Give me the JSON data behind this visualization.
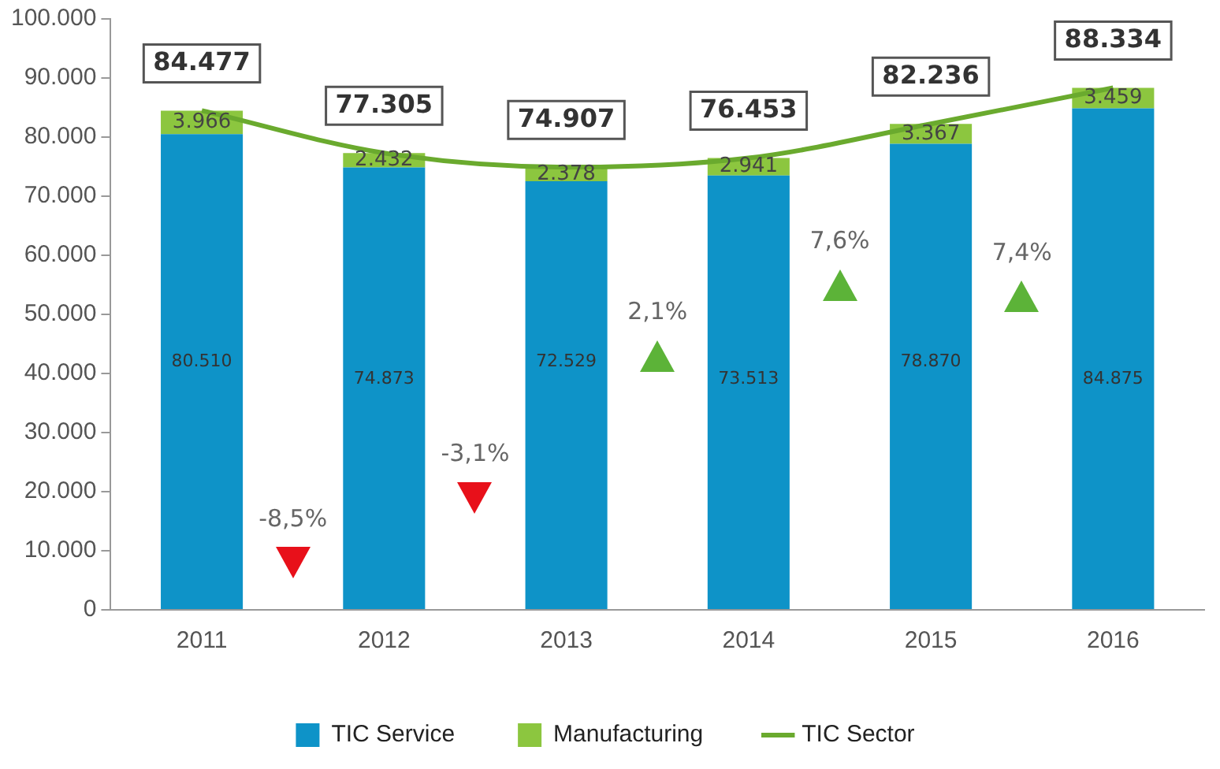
{
  "chart_data": {
    "type": "bar",
    "stacked": true,
    "categories": [
      "2011",
      "2012",
      "2013",
      "2014",
      "2015",
      "2016"
    ],
    "series": [
      {
        "name": "TIC Service",
        "color": "#0e93c8",
        "values": [
          80510,
          74873,
          72529,
          73513,
          78870,
          84875
        ],
        "value_labels": [
          "80.510",
          "74.873",
          "72.529",
          "73.513",
          "78.870",
          "84.875"
        ]
      },
      {
        "name": "Manufacturing",
        "color": "#8cc63f",
        "values": [
          3966,
          2432,
          2378,
          2941,
          3367,
          3459
        ],
        "value_labels": [
          "3.966",
          "2.432",
          "2.378",
          "2.941",
          "3.367",
          "3.459"
        ]
      },
      {
        "name": "TIC Sector",
        "type": "line",
        "color": "#6aaa2e",
        "values": [
          84477,
          77305,
          74907,
          76453,
          82236,
          88334
        ],
        "value_labels": [
          "84.477",
          "77.305",
          "74.907",
          "76.453",
          "82.236",
          "88.334"
        ]
      }
    ],
    "ylim": [
      0,
      100000
    ],
    "yticks": [
      {
        "value": 0,
        "label": "0"
      },
      {
        "value": 10000,
        "label": "10.000"
      },
      {
        "value": 20000,
        "label": "20.000"
      },
      {
        "value": 30000,
        "label": "30.000"
      },
      {
        "value": 40000,
        "label": "40.000"
      },
      {
        "value": 50000,
        "label": "50.000"
      },
      {
        "value": 60000,
        "label": "60.000"
      },
      {
        "value": 70000,
        "label": "70.000"
      },
      {
        "value": 80000,
        "label": "80.000"
      },
      {
        "value": 90000,
        "label": "90.000"
      },
      {
        "value": 100000,
        "label": "100.000"
      }
    ],
    "grid": false,
    "legend": "bottom",
    "marker": "none",
    "annotations": [
      "-8,5%",
      "-3,1%",
      "2,1%",
      "7,6%",
      "7,4%"
    ]
  }
}
